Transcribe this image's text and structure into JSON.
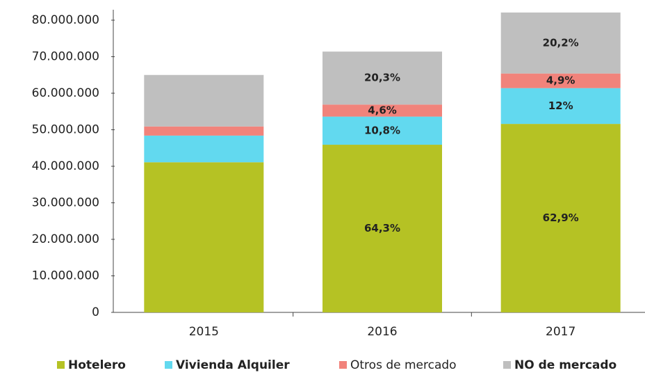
{
  "chart_data": {
    "type": "stacked_bar",
    "categories": [
      "2015",
      "2016",
      "2017"
    ],
    "series": [
      {
        "name": "Hotelero",
        "color": "#b5c224",
        "values": [
          41100000,
          45900000,
          51600000
        ],
        "value_labels": [
          null,
          "64,3%",
          "62,9%"
        ]
      },
      {
        "name": "Vivienda Alquiler",
        "color": "#62d9ef",
        "values": [
          7300000,
          7700000,
          9800000
        ],
        "value_labels": [
          null,
          "10,8%",
          "12%"
        ]
      },
      {
        "name": "Otros de mercado",
        "color": "#f1837b",
        "values": [
          2500000,
          3300000,
          4000000
        ],
        "value_labels": [
          null,
          "4,6%",
          "4,9%"
        ]
      },
      {
        "name": "NO de mercado",
        "color": "#bfbfbf",
        "values": [
          14100000,
          14500000,
          16700000
        ],
        "value_labels": [
          null,
          "20,3%",
          "20,2%"
        ]
      }
    ],
    "ylim": [
      0,
      80000000
    ],
    "yticks": [
      0,
      {
        "value": 10000000,
        "label": "10.000.000"
      },
      {
        "value": 20000000,
        "label": "20.000.000"
      },
      {
        "value": 30000000,
        "label": "30.000.000"
      },
      {
        "value": 40000000,
        "label": "40.000.000"
      },
      {
        "value": 50000000,
        "label": "50.000.000"
      },
      {
        "value": 60000000,
        "label": "60.000.000"
      },
      {
        "value": 70000000,
        "label": "70.000.000"
      },
      {
        "value": 80000000,
        "label": "80.000.000"
      }
    ],
    "legend": "bottom"
  }
}
